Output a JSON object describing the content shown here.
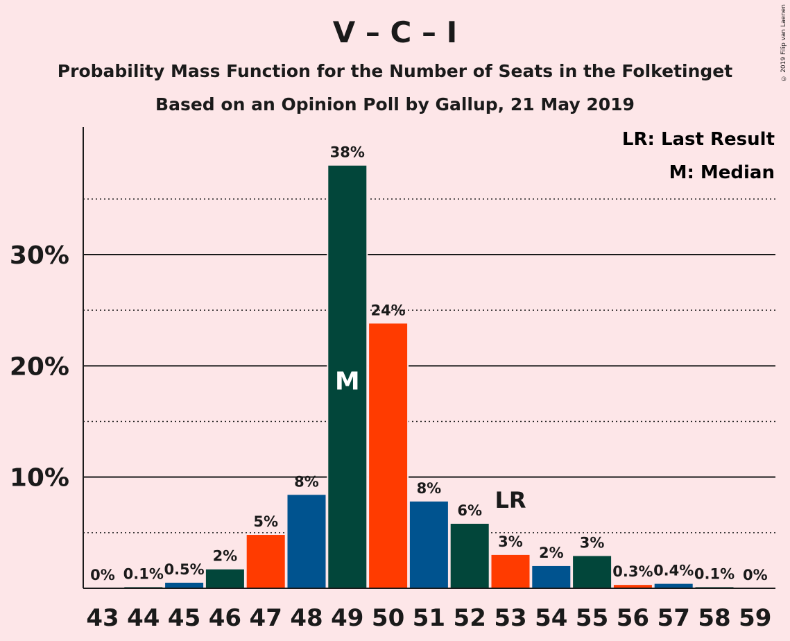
{
  "title": "V – C – I",
  "subtitle_1": "Probability Mass Function for the Number of Seats in the Folketinget",
  "subtitle_2": "Based on an Opinion Poll by Gallup, 21 May 2019",
  "copyright": "© 2019 Filip van Laenen",
  "legend": {
    "last_result": "LR: Last Result",
    "median": "M: Median"
  },
  "colors": {
    "blue": "#00538f",
    "dark_green": "#02463a",
    "orange_red": "#ff3b00",
    "background": "#fde6e8"
  },
  "chart_data": {
    "type": "bar",
    "categories": [
      "43",
      "44",
      "45",
      "46",
      "47",
      "48",
      "49",
      "50",
      "51",
      "52",
      "53",
      "54",
      "55",
      "56",
      "57",
      "58",
      "59"
    ],
    "values": [
      0,
      0.1,
      0.5,
      1.7,
      4.8,
      8.4,
      38,
      23.8,
      7.8,
      5.8,
      3.0,
      2.0,
      2.9,
      0.3,
      0.4,
      0.1,
      0
    ],
    "labels": [
      "0%",
      "0.1%",
      "0.5%",
      "2%",
      "5%",
      "8%",
      "38%",
      "24%",
      "8%",
      "6%",
      "3%",
      "2%",
      "3%",
      "0.3%",
      "0.4%",
      "0.1%",
      "0%"
    ],
    "bar_colors": [
      "#00538f",
      "#02463a",
      "#00538f",
      "#02463a",
      "#ff3b00",
      "#00538f",
      "#02463a",
      "#ff3b00",
      "#00538f",
      "#02463a",
      "#ff3b00",
      "#00538f",
      "#02463a",
      "#ff3b00",
      "#00538f",
      "#02463a",
      "#ff3b00"
    ],
    "y_ticks": [
      10,
      20,
      30
    ],
    "y_tick_labels": [
      "10%",
      "20%",
      "30%"
    ],
    "y_minor_ticks": [
      5,
      15,
      25,
      35
    ],
    "ylim": [
      0,
      40
    ],
    "median_category": "49",
    "median_marker": "M",
    "last_result_category": "53",
    "last_result_marker": "LR",
    "legend_position": "top-right"
  }
}
